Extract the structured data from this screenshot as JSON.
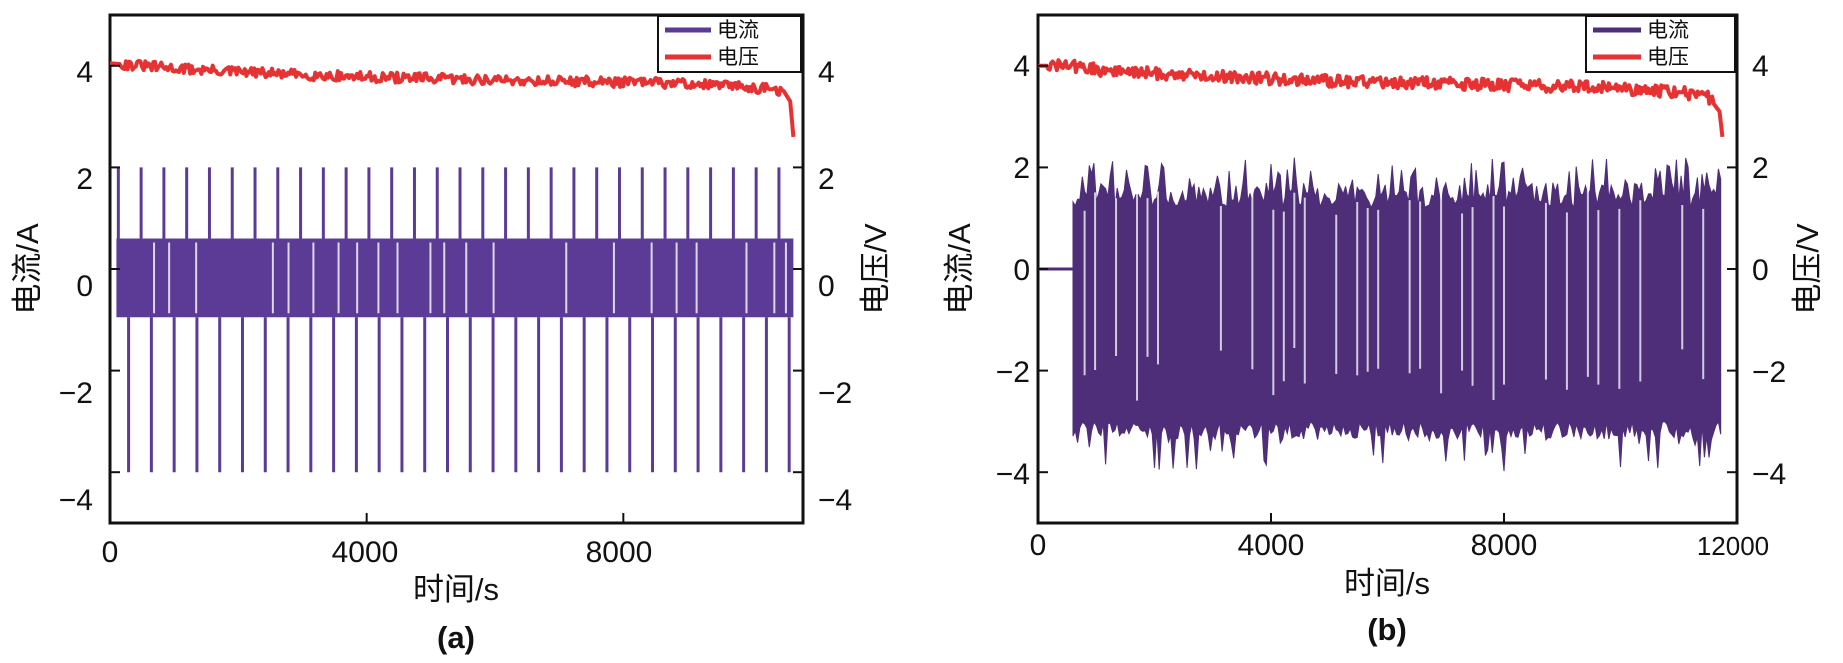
{
  "chart_data": [
    {
      "type": "line",
      "panel_label": "(a)",
      "xlabel": "时间/s",
      "ylabel_left": "电流/A",
      "ylabel_right": "电压/V",
      "xlim": [
        0,
        10800
      ],
      "ylim": [
        -5,
        5
      ],
      "xticks": [
        0,
        4000,
        8000
      ],
      "xtick_labels": [
        "0",
        "4000",
        "8000"
      ],
      "yticks": [
        -4,
        -2,
        0,
        2,
        4
      ],
      "ytick_labels_left": [
        "−4",
        "−2",
        "0",
        "2",
        "4"
      ],
      "ytick_labels_right": [
        "−4",
        "−2",
        "0",
        "2",
        "4"
      ],
      "grid": false,
      "legend_position": "top-right",
      "series": [
        {
          "name": "电流",
          "color": "#5b3b96",
          "mode": "pulses",
          "x_start": 100,
          "x_end": 10650,
          "band": [
            -0.95,
            0.6
          ],
          "pulse_high": 2.0,
          "pulse_low": -4.0,
          "pulse_period": 355
        },
        {
          "name": "电压",
          "color": "#e63232",
          "x": [
            0,
            1000,
            2000,
            3000,
            4000,
            5000,
            6000,
            7000,
            8000,
            9000,
            10000,
            10500,
            10600,
            10650
          ],
          "values": [
            4.05,
            3.95,
            3.88,
            3.82,
            3.78,
            3.75,
            3.72,
            3.7,
            3.68,
            3.65,
            3.58,
            3.5,
            3.3,
            2.6
          ],
          "noise": 0.1
        }
      ]
    },
    {
      "type": "line",
      "panel_label": "(b)",
      "xlabel": "时间/s",
      "ylabel_left": "电流/A",
      "ylabel_right": "电压/V",
      "xlim": [
        0,
        12000
      ],
      "ylim": [
        -5,
        5
      ],
      "xticks": [
        0,
        4000,
        8000,
        12000
      ],
      "xtick_labels": [
        "0",
        "4000",
        "8000",
        "12000"
      ],
      "yticks": [
        -4,
        -2,
        0,
        2,
        4
      ],
      "ytick_labels_left": [
        "−4",
        "−2",
        "0",
        "2",
        "4"
      ],
      "ytick_labels_right": [
        "−4",
        "−2",
        "0",
        "2",
        "4"
      ],
      "grid": false,
      "legend_position": "top-right",
      "series": [
        {
          "name": "电流",
          "color": "#4e2e78",
          "mode": "dense",
          "rest_until": 600,
          "x_end": 11750,
          "envelope_high": [
            1.2,
            2.2
          ],
          "envelope_low": [
            -3.0,
            -4.0
          ]
        },
        {
          "name": "电压",
          "color": "#e63232",
          "x": [
            0,
            600,
            1000,
            2000,
            3000,
            4000,
            5000,
            6000,
            7000,
            8000,
            9000,
            10000,
            11000,
            11500,
            11700,
            11750
          ],
          "values": [
            4.0,
            4.0,
            3.92,
            3.85,
            3.8,
            3.75,
            3.7,
            3.68,
            3.65,
            3.62,
            3.6,
            3.55,
            3.48,
            3.4,
            3.1,
            2.6
          ],
          "noise": 0.12
        }
      ]
    }
  ]
}
